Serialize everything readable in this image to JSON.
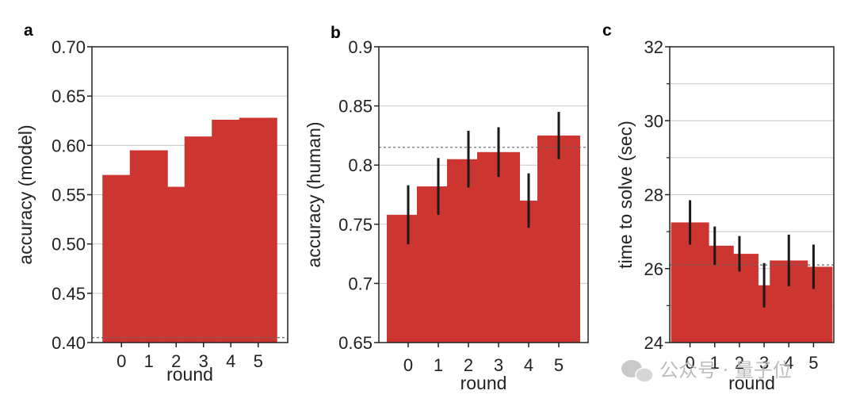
{
  "colors": {
    "bar": "#cc3530",
    "error": "#1a1a1a",
    "grid": "#c8c8c8",
    "reference": "#666666"
  },
  "chart_data": [
    {
      "panel": "a",
      "type": "bar",
      "categories": [
        "0",
        "1",
        "2",
        "3",
        "4",
        "5"
      ],
      "values": [
        0.57,
        0.595,
        0.558,
        0.609,
        0.626,
        0.628
      ],
      "xlabel": "round",
      "ylabel": "accuracy (model)",
      "ylim": [
        0.4,
        0.7
      ],
      "yticks": [
        0.4,
        0.45,
        0.5,
        0.55,
        0.6,
        0.65,
        0.7
      ],
      "ytick_labels": [
        "0.40",
        "0.45",
        "0.50",
        "0.55",
        "0.60",
        "0.65",
        "0.70"
      ],
      "reference_line": 0.405,
      "grid": true
    },
    {
      "panel": "b",
      "type": "bar",
      "categories": [
        "0",
        "1",
        "2",
        "3",
        "4",
        "5"
      ],
      "values": [
        0.758,
        0.782,
        0.805,
        0.811,
        0.77,
        0.825
      ],
      "errors": [
        0.025,
        0.024,
        0.024,
        0.021,
        0.023,
        0.02
      ],
      "xlabel": "round",
      "ylabel": "accuracy (human)",
      "ylim": [
        0.65,
        0.9
      ],
      "yticks": [
        0.65,
        0.7,
        0.75,
        0.8,
        0.85,
        0.9
      ],
      "ytick_labels": [
        "0.65",
        "0.7",
        "0.75",
        "0.8",
        "0.85",
        "0.9"
      ],
      "reference_line": 0.815,
      "grid": true
    },
    {
      "panel": "c",
      "type": "bar",
      "categories": [
        "0",
        "1",
        "2",
        "3",
        "4",
        "5"
      ],
      "values": [
        27.25,
        26.62,
        26.4,
        25.55,
        26.22,
        26.05
      ],
      "errors": [
        0.6,
        0.52,
        0.48,
        0.6,
        0.7,
        0.6
      ],
      "xlabel": "round",
      "ylabel": "time to solve (sec)",
      "ylim": [
        24,
        32
      ],
      "yticks": [
        24,
        26,
        28,
        30,
        32
      ],
      "ytick_labels": [
        "24",
        "26",
        "28",
        "30",
        "32"
      ],
      "minor_yticks": [
        25,
        27,
        29,
        31
      ],
      "reference_line": 26.1,
      "grid": true
    }
  ],
  "watermark": {
    "text": "公众号 · 量子位"
  }
}
